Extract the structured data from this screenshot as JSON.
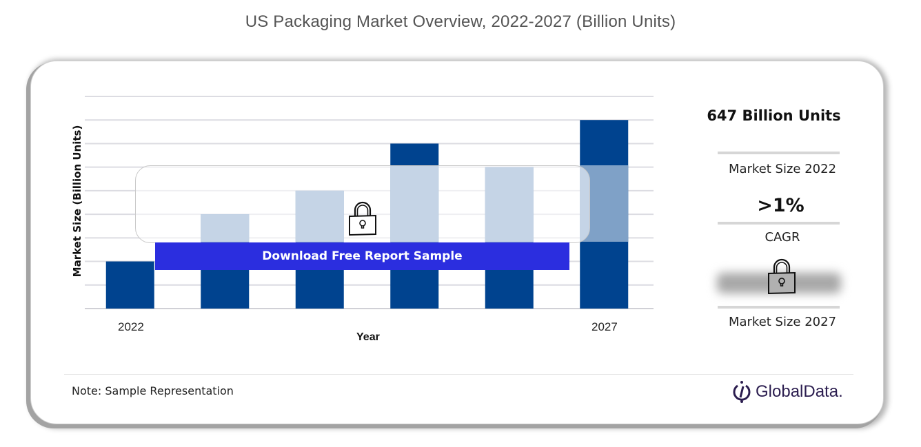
{
  "page": {
    "title": "US Packaging Market Overview, 2022-2027 (Billion Units)"
  },
  "chart_data": {
    "type": "bar",
    "title": "US Packaging Market Overview, 2022-2027 (Billion Units)",
    "xlabel": "Year",
    "ylabel": "Market Size (Billion Units)",
    "categories": [
      "2022",
      "",
      "",
      "",
      "",
      "2027"
    ],
    "tick_labels_shown": [
      "2022",
      "2027"
    ],
    "values": [
      2,
      4,
      5,
      7,
      6,
      8
    ],
    "value_units": "relative gridline units (sample representation, unlabeled axis)",
    "ylim": [
      0,
      9
    ],
    "grid": true,
    "gridline_count": 10,
    "bar_color": "#00438f",
    "masked_bar_color": "#7fa1c7",
    "legend": "none"
  },
  "overlay": {
    "button_label": "Download Free Report Sample",
    "button_color": "#2b2edf",
    "lock_icon": "padlock-icon"
  },
  "sidebar": {
    "market_size_2022_value": "647 Billion Units",
    "market_size_2022_label": "Market Size 2022",
    "cagr_value": ">1%",
    "cagr_label": "CAGR",
    "market_size_2027_value_locked": true,
    "market_size_2027_label": "Market Size 2027"
  },
  "footer": {
    "note": "Note: Sample Representation",
    "brand": "GlobalData."
  }
}
